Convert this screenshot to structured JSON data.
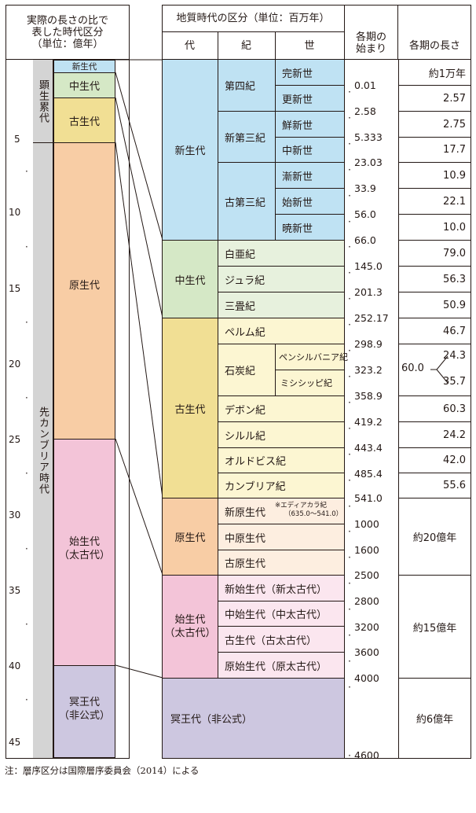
{
  "left_header": {
    "line1": "実際の長さの比で",
    "line2": "表した時代区分",
    "line3": "（単位：億年）"
  },
  "right_header": {
    "title": "地質時代の区分（単位：百万年）",
    "col_era": "代",
    "col_period": "紀",
    "col_epoch": "世",
    "col_start_1": "各期の",
    "col_start_2": "始まり",
    "col_length": "各期の長さ"
  },
  "scale": {
    "ticks": [
      "5",
      "10",
      "15",
      "20",
      "25",
      "30",
      "35",
      "40",
      "45"
    ]
  },
  "left_column": {
    "eon_phanerozoic": "顕生累代",
    "eon_precambrian": "先カンブリア時代",
    "eras": {
      "cenozoic": "新生代",
      "mesozoic": "中生代",
      "paleozoic": "古生代",
      "proterozoic": "原生代",
      "archean_1": "始生代",
      "archean_2": "（太古代）",
      "hadean_1": "冥王代",
      "hadean_2": "（非公式）"
    }
  },
  "eras": {
    "cenozoic": "新生代",
    "mesozoic": "中生代",
    "paleozoic": "古生代",
    "proterozoic": "原生代",
    "archean_1": "始生代",
    "archean_2": "（太古代）",
    "hadean": "冥王代（非公式）"
  },
  "periods": {
    "quaternary": "第四紀",
    "neogene": "新第三紀",
    "paleogene": "古第三紀",
    "cretaceous": "白亜紀",
    "jurassic": "ジュラ紀",
    "triassic": "三畳紀",
    "permian": "ペルム紀",
    "carboniferous": "石炭紀",
    "devonian": "デボン紀",
    "silurian": "シルル紀",
    "ordovician": "オルドビス紀",
    "cambrian": "カンブリア紀",
    "neoproterozoic": "新原生代",
    "ediacaran_note_1": "※エディアカラ紀",
    "ediacaran_note_2": "（635.0～541.0）",
    "mesoproterozoic": "中原生代",
    "paleoproterozoic": "古原生代",
    "neoarchean": "新始生代（新太古代）",
    "mesoarchean": "中始生代（中太古代）",
    "paleoarchean": "古生代（古太古代）",
    "eoarchean": "原始生代（原太古代）"
  },
  "epochs": {
    "holocene": "完新世",
    "pleistocene": "更新世",
    "pliocene": "鮮新世",
    "miocene": "中新世",
    "oligocene": "漸新世",
    "eocene": "始新世",
    "paleocene": "暁新世",
    "pennsylvanian": "ペンシルバニア紀",
    "mississippian": "ミシシッピ紀"
  },
  "boundaries": [
    "0.01",
    "2.58",
    "5.333",
    "23.03",
    "33.9",
    "56.0",
    "66.0",
    "145.0",
    "201.3",
    "252.17",
    "298.9",
    "323.2",
    "358.9",
    "419.2",
    "443.4",
    "485.4",
    "541.0",
    "1000",
    "1600",
    "2500",
    "2800",
    "3200",
    "3600",
    "4000",
    "4600"
  ],
  "lengths": {
    "holocene": "約1万年",
    "pleistocene": "2.57",
    "pliocene": "2.75",
    "miocene": "17.7",
    "oligocene": "10.9",
    "eocene": "22.1",
    "paleocene": "10.0",
    "cretaceous": "79.0",
    "jurassic": "56.3",
    "triassic": "50.9",
    "permian": "46.7",
    "pennsylvanian": "24.3",
    "carboniferous_total": "60.0",
    "mississippian": "35.7",
    "devonian": "60.3",
    "silurian": "24.2",
    "ordovician": "42.0",
    "cambrian": "55.6",
    "proterozoic": "約20億年",
    "archean": "約15億年",
    "hadean": "約6億年"
  },
  "colors": {
    "cenozoic": "#bfe2f3",
    "mesozoic": "#d5e8c6",
    "mesozoic_light": "#e7f1dd",
    "paleozoic": "#f1df94",
    "paleozoic_light": "#fcf6d2",
    "proterozoic": "#f8cda5",
    "proterozoic_light": "#fdeee0",
    "archean": "#f3c4d8",
    "archean_light": "#fbe6ef",
    "hadean": "#cdc7e0",
    "eon_gray": "#d4d4d4"
  },
  "footnote": "注：層序区分は国際層序委員会（2014）による"
}
